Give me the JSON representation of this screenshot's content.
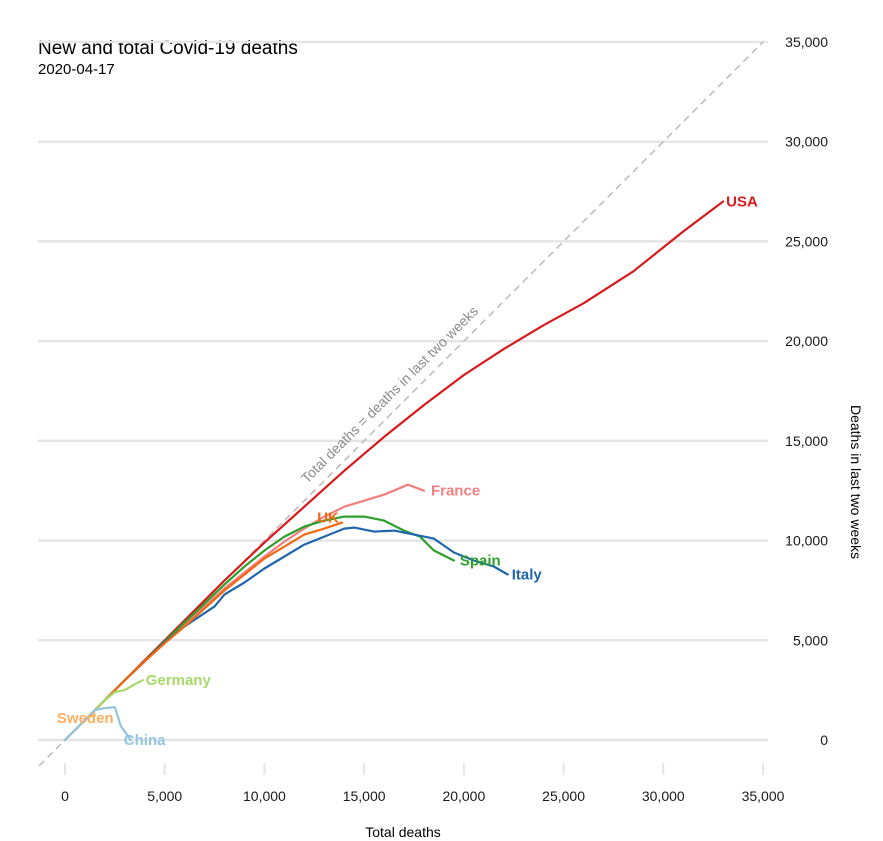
{
  "chart_data": {
    "type": "line",
    "title": "New and total Covid-19 deaths",
    "subtitle": "2020-04-17",
    "xlabel": "Total deaths",
    "ylabel": "Deaths in last two weeks",
    "xlim": [
      -1300,
      35600
    ],
    "ylim": [
      -1300,
      35600
    ],
    "x_ticks": [
      0,
      5000,
      10000,
      15000,
      20000,
      25000,
      30000,
      35000
    ],
    "x_tick_labels": [
      "0",
      "5,000",
      "10,000",
      "15,000",
      "20,000",
      "25,000",
      "30,000",
      "35,000"
    ],
    "y_ticks": [
      0,
      5000,
      10000,
      15000,
      20000,
      25000,
      30000,
      35000
    ],
    "y_tick_labels": [
      "0",
      "5,000",
      "10,000",
      "15,000",
      "20,000",
      "25,000",
      "30,000",
      "35,000"
    ],
    "y_axis_position": "right",
    "grid": "horizontal",
    "legend": "none (direct labels)",
    "reference_line": {
      "label": "Total deaths = deaths in last two weeks",
      "x": [
        -1300,
        35000
      ],
      "y": [
        -1300,
        35000
      ],
      "color": "#bdbdbd"
    },
    "series": [
      {
        "name": "USA",
        "color": "#d7191c",
        "x": [
          0,
          1000,
          2000,
          3000,
          4000,
          5000,
          6000,
          8000,
          10000,
          12000,
          14000,
          16000,
          18000,
          20000,
          22000,
          24000,
          26000,
          28500,
          31000,
          33000
        ],
        "y": [
          0,
          1000,
          2000,
          3000,
          4000,
          5000,
          6000,
          8000,
          9900,
          11700,
          13500,
          15200,
          16800,
          18300,
          19600,
          20800,
          21900,
          23500,
          25500,
          27000
        ]
      },
      {
        "name": "France",
        "color": "#f08080",
        "x": [
          0,
          1000,
          2000,
          3000,
          4000,
          5000,
          6000,
          7000,
          8000,
          9000,
          10000,
          11000,
          12000,
          13000,
          14000,
          15000,
          16000,
          17200,
          18000
        ],
        "y": [
          0,
          1000,
          2000,
          3000,
          3950,
          4900,
          5800,
          6700,
          7600,
          8400,
          9200,
          9950,
          10600,
          11200,
          11700,
          12000,
          12300,
          12800,
          12500
        ]
      },
      {
        "name": "Spain",
        "color": "#2ca02c",
        "x": [
          0,
          1000,
          2000,
          3000,
          4000,
          5000,
          6000,
          7000,
          8000,
          9000,
          10000,
          11000,
          12000,
          13000,
          14000,
          15000,
          16000,
          17000,
          17800,
          18500,
          19500
        ],
        "y": [
          0,
          1000,
          2000,
          3000,
          3950,
          4950,
          5900,
          6850,
          7800,
          8700,
          9500,
          10200,
          10700,
          11000,
          11200,
          11200,
          11000,
          10500,
          10200,
          9500,
          9000
        ]
      },
      {
        "name": "Italy",
        "color": "#2166ac",
        "x": [
          0,
          1000,
          2000,
          3000,
          4000,
          5000,
          6000,
          7500,
          8000,
          9000,
          10000,
          11000,
          12000,
          13000,
          14000,
          14500,
          15500,
          16500,
          17500,
          18500,
          19500,
          20500,
          21500,
          22200
        ],
        "y": [
          0,
          1000,
          2000,
          3000,
          3950,
          4900,
          5700,
          6700,
          7300,
          7900,
          8600,
          9200,
          9800,
          10200,
          10600,
          10650,
          10450,
          10500,
          10300,
          10100,
          9400,
          9000,
          8700,
          8300
        ]
      },
      {
        "name": "UK",
        "color": "#f16913",
        "x": [
          0,
          1000,
          2000,
          3000,
          4000,
          5000,
          6000,
          7000,
          8000,
          9000,
          10000,
          11000,
          12000,
          13000,
          13900
        ],
        "y": [
          0,
          1000,
          2000,
          3000,
          3950,
          4850,
          5700,
          6600,
          7500,
          8300,
          9100,
          9700,
          10300,
          10600,
          10900
        ]
      },
      {
        "name": "Germany",
        "color": "#a6d96a",
        "x": [
          0,
          500,
          1000,
          1500,
          2000,
          2500,
          3000,
          3500,
          3900
        ],
        "y": [
          0,
          500,
          1000,
          1500,
          2000,
          2400,
          2500,
          2800,
          3000
        ]
      },
      {
        "name": "Sweden",
        "color": "#fdae61",
        "x": [
          0,
          400,
          800,
          1200,
          1500
        ],
        "y": [
          0,
          400,
          800,
          1150,
          1250
        ]
      },
      {
        "name": "China",
        "color": "#92c5de",
        "x": [
          0,
          500,
          1000,
          1500,
          2000,
          2500,
          2800,
          3300
        ],
        "y": [
          0,
          500,
          1000,
          1500,
          1600,
          1650,
          700,
          0
        ]
      }
    ]
  }
}
